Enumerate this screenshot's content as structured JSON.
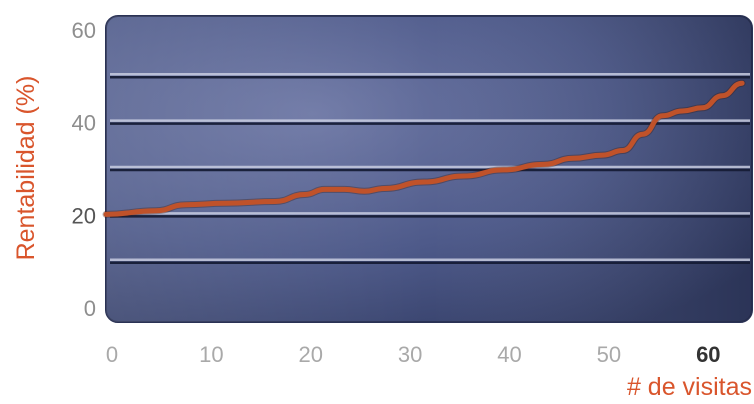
{
  "chart_data": {
    "type": "line",
    "title": "",
    "xlabel": "# de visitas",
    "ylabel": "Rentabilidad (%)",
    "xlim": [
      0,
      65
    ],
    "ylim": [
      -3,
      63
    ],
    "x_ticks": [
      0,
      10,
      20,
      30,
      40,
      50,
      60
    ],
    "y_ticks": [
      0,
      20,
      40,
      60
    ],
    "grid": true,
    "background": "#4a5684",
    "series": [
      {
        "color": "#c0522a",
        "points": [
          [
            0,
            20.2
          ],
          [
            5,
            21.0
          ],
          [
            8,
            22.3
          ],
          [
            12,
            22.6
          ],
          [
            17,
            23.0
          ],
          [
            20,
            24.5
          ],
          [
            22,
            25.6
          ],
          [
            24,
            25.6
          ],
          [
            26,
            25.2
          ],
          [
            28,
            25.8
          ],
          [
            32,
            27.2
          ],
          [
            36,
            28.5
          ],
          [
            40,
            29.8
          ],
          [
            44,
            31.0
          ],
          [
            47,
            32.3
          ],
          [
            50,
            33.0
          ],
          [
            52,
            34.0
          ],
          [
            54,
            37.5
          ],
          [
            56,
            41.5
          ],
          [
            58,
            42.5
          ],
          [
            60,
            43.2
          ],
          [
            62,
            45.8
          ],
          [
            64,
            48.5
          ]
        ]
      }
    ]
  }
}
